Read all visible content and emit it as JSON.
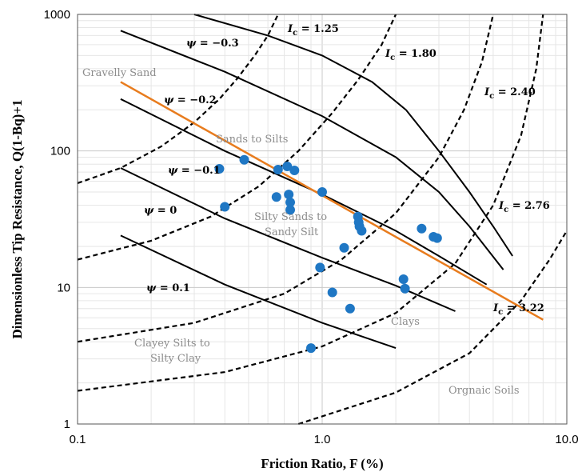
{
  "chart_data": {
    "type": "scatter",
    "title": "",
    "xlabel": "Friction Ratio, F (%)",
    "ylabel": "Dimensionless Tip Resistance, Q(1-Bq)+1",
    "xscale": "log",
    "yscale": "log",
    "xlim": [
      0.1,
      10
    ],
    "ylim": [
      1,
      1000
    ],
    "grid": true,
    "x_tick_labels": [
      "0.1",
      "1.0",
      "10.0"
    ],
    "y_tick_labels": [
      "1",
      "10",
      "100",
      "1000"
    ],
    "colors": {
      "points": "#1f77c4",
      "fit_line": "#e87c1e",
      "curves": "#000000"
    },
    "points": [
      {
        "x": 0.38,
        "y": 74
      },
      {
        "x": 0.48,
        "y": 86
      },
      {
        "x": 0.4,
        "y": 39
      },
      {
        "x": 0.65,
        "y": 46
      },
      {
        "x": 0.66,
        "y": 73
      },
      {
        "x": 0.72,
        "y": 77
      },
      {
        "x": 0.77,
        "y": 72
      },
      {
        "x": 0.73,
        "y": 48
      },
      {
        "x": 0.74,
        "y": 42
      },
      {
        "x": 0.74,
        "y": 37
      },
      {
        "x": 1.0,
        "y": 50
      },
      {
        "x": 1.4,
        "y": 33
      },
      {
        "x": 1.41,
        "y": 30
      },
      {
        "x": 1.45,
        "y": 26
      },
      {
        "x": 1.42,
        "y": 28
      },
      {
        "x": 1.23,
        "y": 19.5
      },
      {
        "x": 0.98,
        "y": 14
      },
      {
        "x": 1.1,
        "y": 9.2
      },
      {
        "x": 1.3,
        "y": 7.0
      },
      {
        "x": 0.9,
        "y": 3.6
      },
      {
        "x": 2.15,
        "y": 11.5
      },
      {
        "x": 2.18,
        "y": 9.8
      },
      {
        "x": 2.55,
        "y": 27
      },
      {
        "x": 2.85,
        "y": 23.5
      },
      {
        "x": 2.95,
        "y": 23
      }
    ],
    "fit_line": [
      {
        "x": 0.15,
        "y": 320
      },
      {
        "x": 8.0,
        "y": 5.8
      }
    ],
    "ic_curves": [
      {
        "label": "1.25",
        "pts": [
          [
            0.1,
            58
          ],
          [
            0.15,
            75
          ],
          [
            0.22,
            108
          ],
          [
            0.3,
            162
          ],
          [
            0.38,
            240
          ],
          [
            0.45,
            340
          ],
          [
            0.53,
            500
          ],
          [
            0.6,
            700
          ],
          [
            0.66,
            1000
          ]
        ]
      },
      {
        "label": "1.80",
        "pts": [
          [
            0.1,
            16
          ],
          [
            0.2,
            22
          ],
          [
            0.35,
            33
          ],
          [
            0.55,
            55
          ],
          [
            0.8,
            100
          ],
          [
            1.1,
            190
          ],
          [
            1.4,
            330
          ],
          [
            1.75,
            600
          ],
          [
            2.0,
            1000
          ]
        ]
      },
      {
        "label": "2.40",
        "pts": [
          [
            0.1,
            4.0
          ],
          [
            0.3,
            5.5
          ],
          [
            0.7,
            9
          ],
          [
            1.2,
            16
          ],
          [
            2.0,
            35
          ],
          [
            3.0,
            90
          ],
          [
            3.8,
            200
          ],
          [
            4.5,
            450
          ],
          [
            5.0,
            1000
          ]
        ]
      },
      {
        "label": "2.76",
        "pts": [
          [
            0.1,
            1.75
          ],
          [
            0.4,
            2.4
          ],
          [
            1.0,
            3.7
          ],
          [
            2.0,
            6.5
          ],
          [
            3.5,
            15
          ],
          [
            5.0,
            40
          ],
          [
            6.5,
            130
          ],
          [
            7.5,
            400
          ],
          [
            8.0,
            1000
          ]
        ]
      },
      {
        "label": "3.22",
        "pts": [
          [
            0.8,
            1.0
          ],
          [
            2.0,
            1.7
          ],
          [
            4.0,
            3.3
          ],
          [
            6.5,
            8.0
          ],
          [
            8.5,
            16
          ],
          [
            10.0,
            26
          ]
        ]
      }
    ],
    "psi_curves": [
      {
        "label": "−0.3",
        "pts": [
          [
            0.3,
            1000
          ],
          [
            0.6,
            700
          ],
          [
            1.0,
            500
          ],
          [
            1.6,
            320
          ],
          [
            2.2,
            200
          ],
          [
            3.0,
            100
          ],
          [
            4.0,
            50
          ],
          [
            5.0,
            28
          ],
          [
            6.0,
            17
          ]
        ]
      },
      {
        "label": "−0.2",
        "pts": [
          [
            0.15,
            760
          ],
          [
            0.4,
            380
          ],
          [
            1.0,
            180
          ],
          [
            2.0,
            90
          ],
          [
            3.0,
            50
          ],
          [
            4.0,
            28
          ],
          [
            5.5,
            13.5
          ]
        ]
      },
      {
        "label": "−0.1",
        "pts": [
          [
            0.15,
            240
          ],
          [
            0.4,
            100
          ],
          [
            1.0,
            48
          ],
          [
            2.0,
            26
          ],
          [
            3.0,
            17
          ],
          [
            4.7,
            10.5
          ]
        ]
      },
      {
        "label": "0",
        "pts": [
          [
            0.15,
            75
          ],
          [
            0.4,
            32
          ],
          [
            1.0,
            16.5
          ],
          [
            2.0,
            10.3
          ],
          [
            3.5,
            6.7
          ]
        ]
      },
      {
        "label": "0.1",
        "pts": [
          [
            0.15,
            24
          ],
          [
            0.4,
            10.5
          ],
          [
            1.0,
            5.5
          ],
          [
            2.0,
            3.6
          ]
        ]
      }
    ],
    "annotations": {
      "zones": [
        "Gravelly Sand",
        "Sands to Silts",
        "Silty Sands to",
        "Sandy  Silt",
        "Clays",
        "Clayey Silts to",
        "Silty  Clay",
        "Orgnaic Soils"
      ],
      "ic_symbol": "I",
      "ic_sub": "c",
      "ic_eq": " = ",
      "ic_values": [
        "1.25",
        "1.80",
        "2.40",
        "2.76",
        "3.22"
      ],
      "psi_symbol": "ψ",
      "psi_eq": " = ",
      "psi_values": [
        "−0.3",
        "−0.2",
        "−0.1",
        "0",
        "0.1"
      ]
    }
  }
}
